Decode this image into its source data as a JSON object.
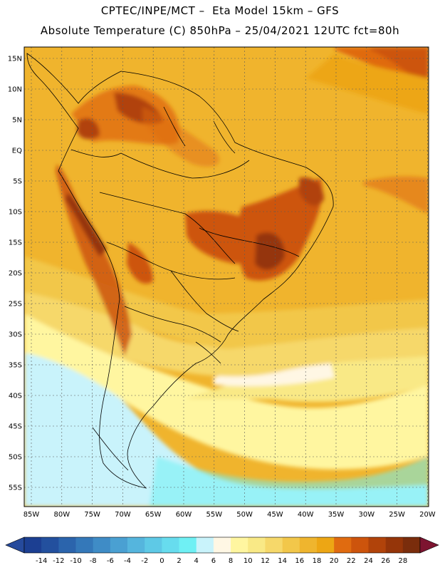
{
  "title_line1": "CPTEC/INPE/MCT –  Eta Model 15km – GFS",
  "title_line2": "Absolute Temperature (C) 850hPa – 25/04/2021 12UTC fct=80h",
  "lat_labels": [
    "15N",
    "10N",
    "5N",
    "EQ",
    "5S",
    "10S",
    "15S",
    "20S",
    "25S",
    "30S",
    "35S",
    "40S",
    "45S",
    "50S",
    "55S"
  ],
  "lon_labels": [
    "85W",
    "80W",
    "75W",
    "70W",
    "65W",
    "60W",
    "55W",
    "50W",
    "45W",
    "40W",
    "35W",
    "30W",
    "25W",
    "20W"
  ],
  "colorbar": {
    "ticks": [
      "-14",
      "-12",
      "-10",
      "-8",
      "-6",
      "-4",
      "-2",
      "0",
      "2",
      "4",
      "6",
      "8",
      "10",
      "12",
      "14",
      "16",
      "18",
      "20",
      "22",
      "24",
      "26",
      "28"
    ],
    "colors": [
      "#1c3f92",
      "#23509e",
      "#2b64ac",
      "#3478b9",
      "#3f8cc6",
      "#4aa0d2",
      "#55b5dd",
      "#5ec9e6",
      "#67dcee",
      "#6ff0f4",
      "#c9f3fb",
      "#fff7e4",
      "#fff6a0",
      "#f9e986",
      "#f6d86a",
      "#f2c74a",
      "#efb52e",
      "#eda614",
      "#e06b10",
      "#cd540c",
      "#b1430a",
      "#953509",
      "#7a2d0c"
    ],
    "under_color": "#264a9c",
    "over_color": "#7d1430"
  }
}
